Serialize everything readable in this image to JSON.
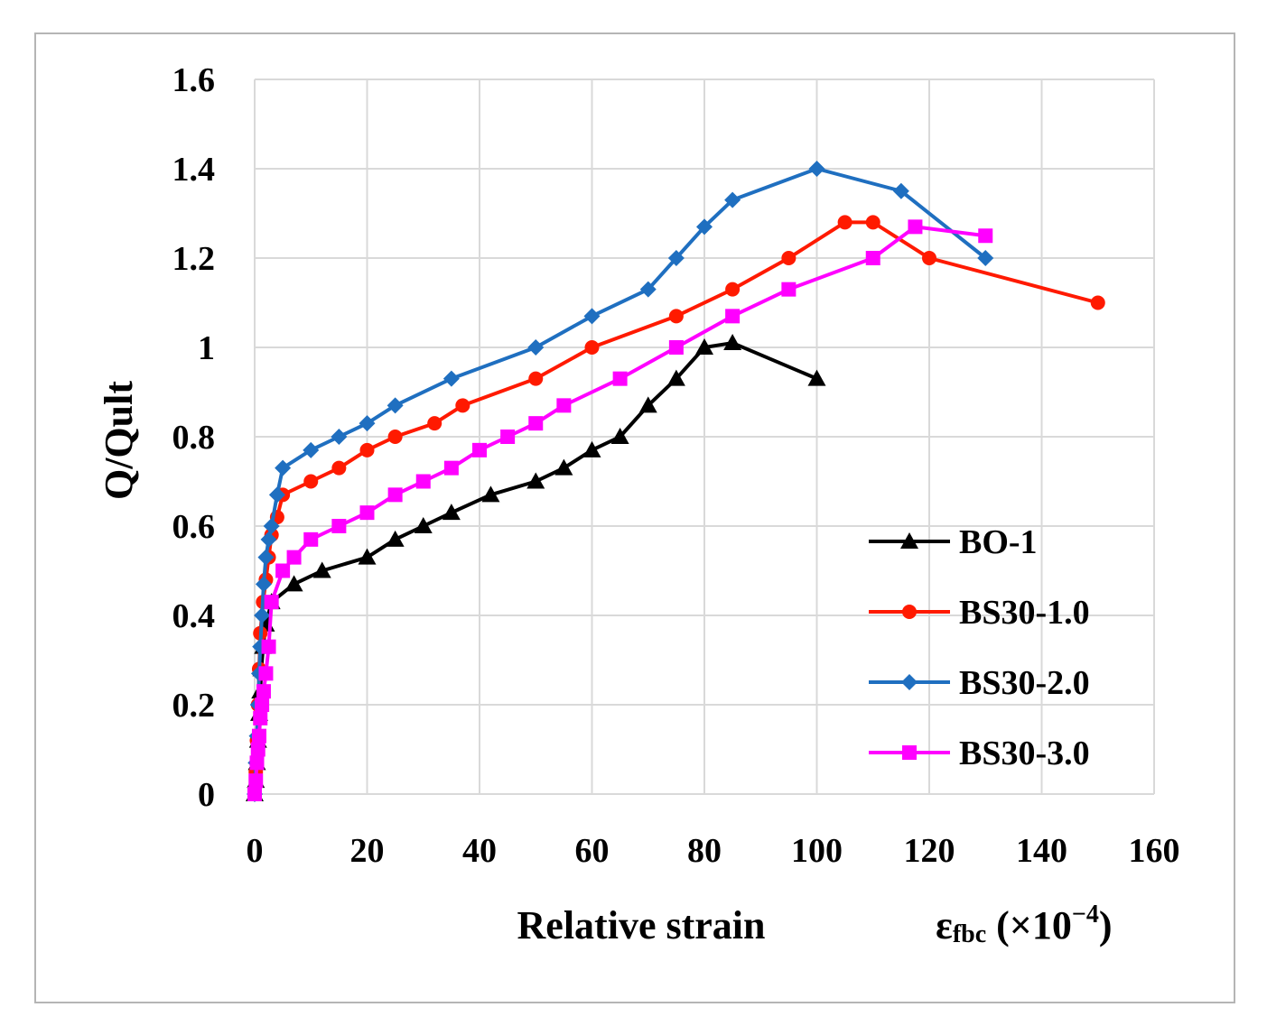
{
  "chart_data": {
    "type": "line",
    "title": "",
    "xlabel": "Relative strain",
    "xlabel_symbol": "ε",
    "xlabel_subscript": "fbc",
    "xlabel_unit_prefix": " (×10",
    "xlabel_unit_exp": "−4",
    "xlabel_unit_suffix": ")",
    "ylabel": "Q/Qult",
    "xlim": [
      0,
      160
    ],
    "ylim": [
      0,
      1.6
    ],
    "xticks": [
      0,
      20,
      40,
      60,
      80,
      100,
      120,
      140,
      160
    ],
    "yticks": [
      0,
      0.2,
      0.4,
      0.6,
      0.8,
      1,
      1.2,
      1.4,
      1.6
    ],
    "xtick_labels": [
      "0",
      "20",
      "40",
      "60",
      "80",
      "100",
      "120",
      "140",
      "160"
    ],
    "ytick_labels": [
      "0",
      "0.2",
      "0.4",
      "0.6",
      "0.8",
      "1",
      "1.2",
      "1.4",
      "1.6"
    ],
    "grid": true,
    "legend_position": "right-lower",
    "series": [
      {
        "name": "BO-1",
        "color": "#000000",
        "marker": "triangle",
        "x": [
          0,
          0.2,
          0.4,
          0.6,
          0.8,
          1.0,
          1.2,
          1.5,
          2,
          3,
          7,
          12,
          20,
          25,
          30,
          35,
          42,
          50,
          55,
          60,
          65,
          70,
          75,
          80,
          85,
          100
        ],
        "y": [
          0,
          0.03,
          0.07,
          0.12,
          0.18,
          0.23,
          0.28,
          0.33,
          0.38,
          0.43,
          0.47,
          0.5,
          0.53,
          0.57,
          0.6,
          0.63,
          0.67,
          0.7,
          0.73,
          0.77,
          0.8,
          0.87,
          0.93,
          1.0,
          1.01,
          0.93
        ]
      },
      {
        "name": "BS30-1.0",
        "color": "#ff1a00",
        "marker": "circle",
        "x": [
          0,
          0.2,
          0.4,
          0.6,
          0.8,
          1.0,
          1.5,
          2,
          2.5,
          3,
          4,
          5,
          10,
          15,
          20,
          25,
          32,
          37,
          50,
          60,
          75,
          85,
          95,
          105,
          110,
          120,
          150
        ],
        "y": [
          0,
          0.05,
          0.12,
          0.2,
          0.28,
          0.36,
          0.43,
          0.48,
          0.53,
          0.58,
          0.62,
          0.67,
          0.7,
          0.73,
          0.77,
          0.8,
          0.83,
          0.87,
          0.93,
          1.0,
          1.07,
          1.13,
          1.2,
          1.28,
          1.28,
          1.2,
          1.1
        ]
      },
      {
        "name": "BS30-2.0",
        "color": "#1f6fc0",
        "marker": "diamond",
        "x": [
          0,
          0.2,
          0.4,
          0.6,
          0.8,
          1.0,
          1.3,
          1.6,
          2,
          2.5,
          3,
          4,
          5,
          10,
          15,
          20,
          25,
          35,
          50,
          60,
          70,
          75,
          80,
          85,
          100,
          115,
          130
        ],
        "y": [
          0,
          0.07,
          0.13,
          0.2,
          0.27,
          0.33,
          0.4,
          0.47,
          0.53,
          0.57,
          0.6,
          0.67,
          0.73,
          0.77,
          0.8,
          0.83,
          0.87,
          0.93,
          1.0,
          1.07,
          1.13,
          1.2,
          1.27,
          1.33,
          1.4,
          1.35,
          1.2
        ]
      },
      {
        "name": "BS30-3.0",
        "color": "#ff00ff",
        "marker": "square",
        "x": [
          0,
          0.2,
          0.4,
          0.6,
          0.8,
          1.0,
          1.3,
          1.6,
          2,
          2.5,
          3,
          5,
          7,
          10,
          15,
          20,
          25,
          30,
          35,
          40,
          45,
          50,
          55,
          65,
          75,
          85,
          95,
          110,
          117.5,
          130
        ],
        "y": [
          0,
          0.03,
          0.07,
          0.1,
          0.13,
          0.17,
          0.2,
          0.23,
          0.27,
          0.33,
          0.43,
          0.5,
          0.53,
          0.57,
          0.6,
          0.63,
          0.67,
          0.7,
          0.73,
          0.77,
          0.8,
          0.83,
          0.87,
          0.93,
          1.0,
          1.07,
          1.13,
          1.2,
          1.27,
          1.25
        ]
      }
    ]
  }
}
